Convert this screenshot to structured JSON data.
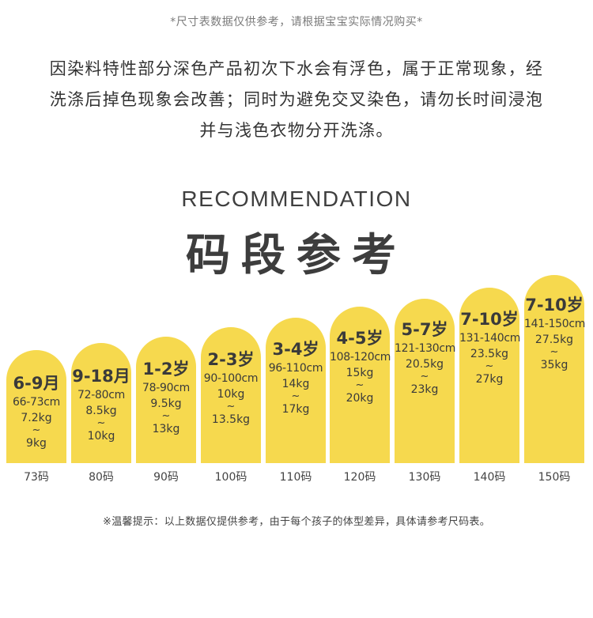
{
  "top_note": "*尺寸表数据仅供参考，请根据宝宝实际情况购买*",
  "notice_lines": [
    "因染料特性部分深色产品初次下水会有浮色，属于正常现象，经",
    "洗涤后掉色现象会改善；同时为避免交叉染色，请勿长时间浸泡",
    "并与浅色衣物分开洗涤。"
  ],
  "recommendation": "RECOMMENDATION",
  "section_title": "码段参考",
  "columns": [
    {
      "age": "6-9月",
      "height": "66-73cm",
      "w1": "7.2kg",
      "tilde": "~",
      "w2": "9kg",
      "size": "73码"
    },
    {
      "age": "9-18月",
      "height": "72-80cm",
      "w1": "8.5kg",
      "tilde": "~",
      "w2": "10kg",
      "size": "80码"
    },
    {
      "age": "1-2岁",
      "height": "78-90cm",
      "w1": "9.5kg",
      "tilde": "~",
      "w2": "13kg",
      "size": "90码"
    },
    {
      "age": "2-3岁",
      "height": "90-100cm",
      "w1": "10kg",
      "tilde": "~",
      "w2": "13.5kg",
      "size": "100码"
    },
    {
      "age": "3-4岁",
      "height": "96-110cm",
      "w1": "14kg",
      "tilde": "~",
      "w2": "17kg",
      "size": "110码"
    },
    {
      "age": "4-5岁",
      "height": "108-120cm",
      "w1": "15kg",
      "tilde": "~",
      "w2": "20kg",
      "size": "120码"
    },
    {
      "age": "5-7岁",
      "height": "121-130cm",
      "w1": "20.5kg",
      "tilde": "~",
      "w2": "23kg",
      "size": "130码"
    },
    {
      "age": "7-10岁",
      "height": "131-140cm",
      "w1": "23.5kg",
      "tilde": "~",
      "w2": "27kg",
      "size": "140码"
    },
    {
      "age": "7-10岁",
      "height": "141-150cm",
      "w1": "27.5kg",
      "tilde": "~",
      "w2": "35kg",
      "size": "150码"
    }
  ],
  "bottom_tip": "※温馨提示：以上数据仅提供参考，由于每个孩子的体型差异，具体请参考尺码表。",
  "colors": {
    "bar": "#f6d94e",
    "text": "#3a3a3a",
    "background": "#ffffff"
  }
}
